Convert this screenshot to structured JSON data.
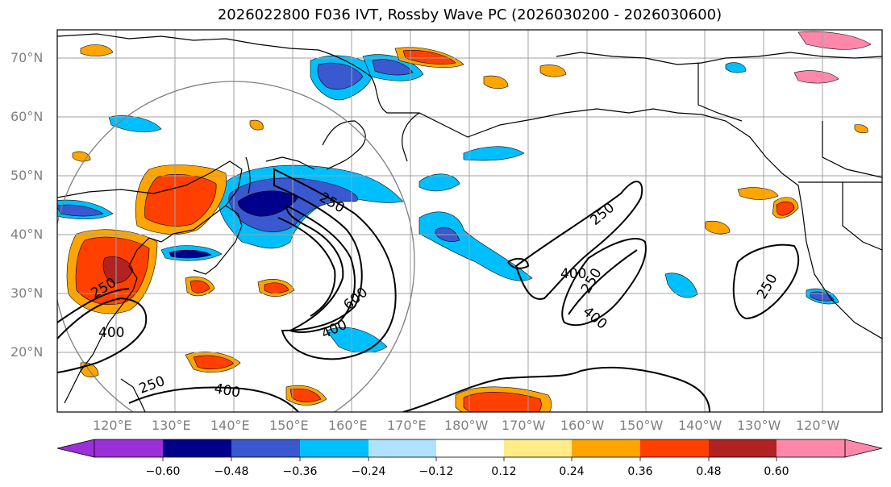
{
  "title": "2026022800 F036 IVT, Rossby Wave PC (2026030200 - 2026030600)",
  "lat_labels": [
    "70°N",
    "60°N",
    "50°N",
    "40°N",
    "30°N",
    "20°N"
  ],
  "lon_labels": [
    "120°E",
    "130°E",
    "140°E",
    "150°E",
    "160°E",
    "170°E",
    "180°W",
    "170°W",
    "160°W",
    "150°W",
    "140°W",
    "130°W",
    "120°W"
  ],
  "contour_labels": [
    "250",
    "250",
    "400",
    "600",
    "400",
    "250",
    "400",
    "250",
    "400",
    "250",
    "400",
    "250",
    "400",
    "250",
    "250"
  ],
  "colorbar": {
    "labels": [
      "−0.60",
      "−0.48",
      "−0.36",
      "−0.24",
      "−0.12",
      "0.12",
      "0.24",
      "0.36",
      "0.48",
      "0.60"
    ],
    "colors": [
      "#9b30d8",
      "#00008b",
      "#3a58cf",
      "#00bfff",
      "#aee2ff",
      "#ffffff",
      "#ffeb88",
      "#ffa500",
      "#ff4000",
      "#b22222",
      "#ff88aa"
    ]
  }
}
